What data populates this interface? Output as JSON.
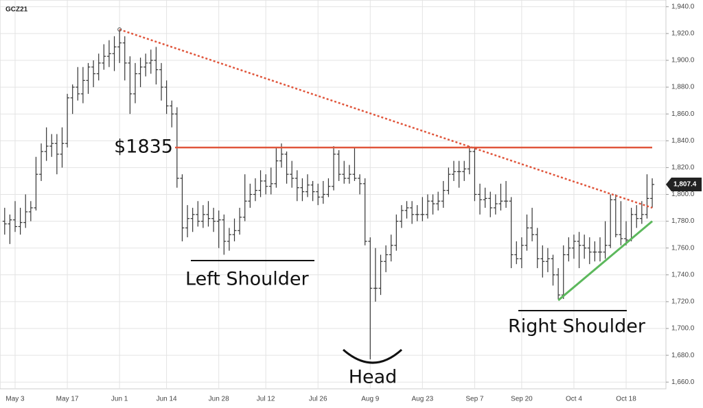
{
  "chart_data": {
    "type": "ohlc",
    "title": "GCZ21",
    "categories": [
      null,
      null,
      "May 3",
      null,
      null,
      null,
      null,
      null,
      null,
      null,
      null,
      null,
      "May 17",
      null,
      null,
      null,
      null,
      null,
      null,
      null,
      null,
      null,
      "Jun 1",
      null,
      null,
      null,
      null,
      null,
      null,
      null,
      null,
      "Jun 14",
      null,
      null,
      null,
      null,
      null,
      null,
      null,
      null,
      null,
      "Jun 28",
      null,
      null,
      null,
      null,
      null,
      null,
      null,
      null,
      "Jul 12",
      null,
      null,
      null,
      null,
      null,
      null,
      null,
      null,
      null,
      "Jul 26",
      null,
      null,
      null,
      null,
      null,
      null,
      null,
      null,
      null,
      "Aug 9",
      null,
      null,
      null,
      null,
      null,
      null,
      null,
      null,
      null,
      "Aug 23",
      null,
      null,
      null,
      null,
      null,
      null,
      null,
      null,
      null,
      "Sep 7",
      null,
      null,
      null,
      null,
      null,
      null,
      null,
      null,
      "Sep 20",
      null,
      null,
      null,
      null,
      null,
      null,
      null,
      null,
      null,
      "Oct 4",
      null,
      null,
      null,
      null,
      null,
      null,
      null,
      null,
      null,
      "Oct 18",
      null,
      null,
      null,
      null,
      null
    ],
    "open": [
      1780,
      1778,
      1781,
      1776,
      1779,
      1787,
      1790,
      1815,
      1832,
      1836,
      1838,
      1830,
      1838,
      1872,
      1880,
      1875,
      1885,
      1895,
      1890,
      1898,
      1903,
      1905,
      1910,
      1913,
      1898,
      1875,
      1890,
      1895,
      1898,
      1900,
      1893,
      1880,
      1866,
      1860,
      1812,
      1775,
      1782,
      1785,
      1780,
      1785,
      1782,
      1780,
      1781,
      1765,
      1770,
      1773,
      1783,
      1795,
      1800,
      1803,
      1810,
      1806,
      1808,
      1825,
      1830,
      1815,
      1812,
      1805,
      1802,
      1807,
      1802,
      1798,
      1800,
      1806,
      1830,
      1815,
      1812,
      1815,
      1812,
      1808,
      1765,
      1730,
      1730,
      1750,
      1755,
      1762,
      1780,
      1788,
      1790,
      1785,
      1785,
      1785,
      1795,
      1793,
      1795,
      1803,
      1815,
      1817,
      1817,
      1819,
      1832,
      1800,
      1796,
      1797,
      1790,
      1793,
      1795,
      1795,
      1755,
      1752,
      1762,
      1775,
      1770,
      1752,
      1750,
      1752,
      1740,
      1725,
      1755,
      1760,
      1765,
      1762,
      1760,
      1757,
      1757,
      1757,
      1762,
      1796,
      1770,
      1767,
      1766,
      1785,
      1782,
      1785,
      1797
    ],
    "high": [
      1790,
      1785,
      1795,
      1790,
      1800,
      1795,
      1828,
      1838,
      1850,
      1845,
      1845,
      1850,
      1875,
      1882,
      1895,
      1895,
      1898,
      1900,
      1905,
      1912,
      1915,
      1918,
      1923,
      1918,
      1903,
      1898,
      1902,
      1905,
      1908,
      1910,
      1898,
      1885,
      1870,
      1865,
      1815,
      1792,
      1790,
      1795,
      1792,
      1795,
      1790,
      1788,
      1785,
      1775,
      1782,
      1790,
      1815,
      1808,
      1812,
      1818,
      1815,
      1820,
      1835,
      1838,
      1832,
      1825,
      1818,
      1812,
      1815,
      1810,
      1808,
      1810,
      1812,
      1836,
      1833,
      1825,
      1822,
      1835,
      1815,
      1812,
      1768,
      1760,
      1755,
      1762,
      1770,
      1785,
      1792,
      1795,
      1795,
      1792,
      1798,
      1800,
      1800,
      1802,
      1810,
      1820,
      1825,
      1825,
      1825,
      1836,
      1835,
      1808,
      1805,
      1802,
      1800,
      1808,
      1810,
      1798,
      1765,
      1768,
      1785,
      1790,
      1775,
      1762,
      1760,
      1755,
      1745,
      1762,
      1768,
      1770,
      1772,
      1770,
      1768,
      1765,
      1768,
      1780,
      1800,
      1800,
      1795,
      1780,
      1790,
      1792,
      1795,
      1815,
      1812
    ],
    "low": [
      1770,
      1763,
      1772,
      1770,
      1775,
      1780,
      1788,
      1810,
      1825,
      1828,
      1815,
      1820,
      1835,
      1860,
      1870,
      1868,
      1875,
      1880,
      1885,
      1893,
      1895,
      1892,
      1898,
      1885,
      1860,
      1868,
      1880,
      1888,
      1890,
      1882,
      1870,
      1860,
      1850,
      1805,
      1765,
      1768,
      1772,
      1776,
      1775,
      1776,
      1772,
      1760,
      1755,
      1758,
      1765,
      1770,
      1780,
      1790,
      1795,
      1798,
      1800,
      1800,
      1805,
      1820,
      1808,
      1805,
      1795,
      1795,
      1798,
      1795,
      1792,
      1793,
      1798,
      1803,
      1810,
      1808,
      1808,
      1810,
      1800,
      1762,
      1677,
      1720,
      1725,
      1742,
      1750,
      1758,
      1775,
      1782,
      1778,
      1780,
      1780,
      1782,
      1785,
      1788,
      1790,
      1800,
      1810,
      1805,
      1810,
      1815,
      1795,
      1785,
      1790,
      1783,
      1785,
      1788,
      1790,
      1745,
      1748,
      1745,
      1758,
      1765,
      1745,
      1738,
      1742,
      1732,
      1722,
      1722,
      1750,
      1752,
      1745,
      1752,
      1748,
      1750,
      1750,
      1752,
      1760,
      1768,
      1762,
      1762,
      1765,
      1775,
      1778,
      1782,
      1790
    ],
    "close": [
      1778,
      1781,
      1776,
      1779,
      1787,
      1790,
      1815,
      1832,
      1836,
      1838,
      1830,
      1838,
      1872,
      1880,
      1875,
      1885,
      1895,
      1890,
      1898,
      1903,
      1905,
      1910,
      1913,
      1898,
      1875,
      1890,
      1895,
      1898,
      1900,
      1893,
      1880,
      1866,
      1860,
      1812,
      1775,
      1782,
      1785,
      1780,
      1785,
      1782,
      1780,
      1781,
      1765,
      1770,
      1773,
      1783,
      1795,
      1800,
      1803,
      1810,
      1806,
      1808,
      1825,
      1830,
      1815,
      1812,
      1805,
      1802,
      1807,
      1802,
      1798,
      1800,
      1806,
      1830,
      1815,
      1812,
      1815,
      1812,
      1808,
      1765,
      1730,
      1730,
      1750,
      1755,
      1762,
      1780,
      1788,
      1790,
      1785,
      1785,
      1785,
      1795,
      1793,
      1795,
      1803,
      1815,
      1817,
      1817,
      1819,
      1832,
      1800,
      1796,
      1797,
      1790,
      1793,
      1795,
      1795,
      1755,
      1752,
      1762,
      1775,
      1770,
      1752,
      1750,
      1752,
      1740,
      1725,
      1755,
      1760,
      1765,
      1762,
      1760,
      1757,
      1757,
      1757,
      1762,
      1796,
      1770,
      1767,
      1766,
      1785,
      1782,
      1785,
      1797,
      1807.4
    ],
    "last_value_label": "1,807.4",
    "color": "#333333",
    "ylim": [
      1655,
      1945
    ],
    "yticks": [
      {
        "value": 1660,
        "label": "1,660.0"
      },
      {
        "value": 1680,
        "label": "1,680.0"
      },
      {
        "value": 1700,
        "label": "1,700.0"
      },
      {
        "value": 1720,
        "label": "1,720.0"
      },
      {
        "value": 1740,
        "label": "1,740.0"
      },
      {
        "value": 1760,
        "label": "1,760.0"
      },
      {
        "value": 1780,
        "label": "1,780.0"
      },
      {
        "value": 1800,
        "label": "1,800.0"
      },
      {
        "value": 1820,
        "label": "1,820.0"
      },
      {
        "value": 1840,
        "label": "1,840.0"
      },
      {
        "value": 1860,
        "label": "1,860.0"
      },
      {
        "value": 1880,
        "label": "1,880.0"
      },
      {
        "value": 1900,
        "label": "1,900.0"
      },
      {
        "value": 1920,
        "label": "1,920.0"
      },
      {
        "value": 1940,
        "label": "1,940.0"
      }
    ],
    "grid": true,
    "neckline": {
      "value": 1835,
      "label": "$1835",
      "color": "#e0553b"
    },
    "trendlines": [
      {
        "start": {
          "index": 22,
          "value": 1923
        },
        "end": {
          "index": 124,
          "value": 1790
        },
        "color": "#e0553b",
        "dashed": true
      },
      {
        "start": {
          "index": 106,
          "value": 1721
        },
        "end": {
          "index": 124,
          "value": 1780
        },
        "color": "#5cb85c",
        "dashed": false
      }
    ],
    "annotations": {
      "left_shoulder": "Left Shoulder",
      "head": "Head",
      "right_shoulder": "Right Shoulder"
    }
  }
}
